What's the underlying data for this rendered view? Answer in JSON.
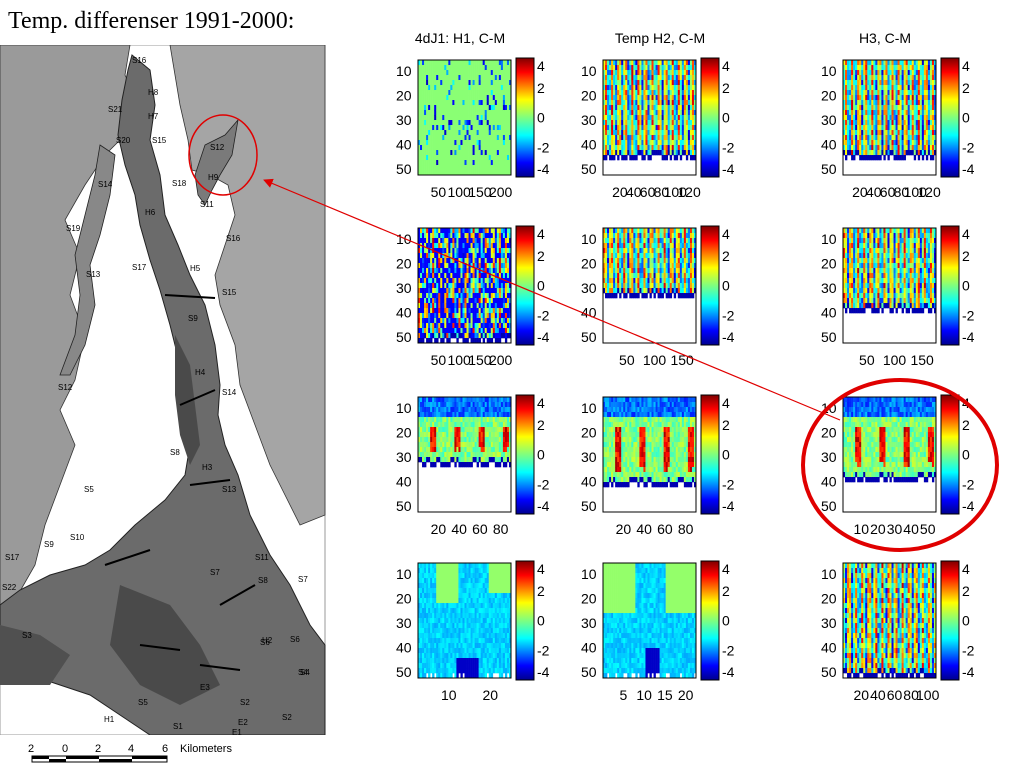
{
  "slide": {
    "title": "Temp. differenser 1991-2000:"
  },
  "map": {
    "station_labels": [
      "S16",
      "H8",
      "S21",
      "H7",
      "S15",
      "S20",
      "S14",
      "H6",
      "S18",
      "H9",
      "S12",
      "S11",
      "S16",
      "S19",
      "S17",
      "S13",
      "H5",
      "S15",
      "S9",
      "S12",
      "H4",
      "S14",
      "S8",
      "H3",
      "S13",
      "S5",
      "S10",
      "S11",
      "S7",
      "S9",
      "S17",
      "S7",
      "S8",
      "S6",
      "S4",
      "S22",
      "S3",
      "H1",
      "S2",
      "H2",
      "S6",
      "S4",
      "S5",
      "S1",
      "S2",
      "E1",
      "E3",
      "E2"
    ],
    "scale": {
      "ticks": [
        "2",
        "0",
        "2",
        "4",
        "6"
      ],
      "unit": "Kilometers"
    }
  },
  "colorbar": {
    "ticks": [
      "4",
      "2",
      "0",
      "-2",
      "-4"
    ],
    "range": [
      -4,
      4
    ]
  },
  "chart_data": {
    "type": "heatmap",
    "column_titles": [
      "4dJ1: H1, C-M",
      "Temp H2, C-M",
      "H3, C-M"
    ],
    "y_ticks": [
      "10",
      "20",
      "30",
      "40",
      "50"
    ],
    "x_ticks_by_panel": [
      [
        "50",
        "100",
        "150",
        "200"
      ],
      [
        "20",
        "40",
        "60",
        "80",
        "100",
        "120"
      ],
      [
        "20",
        "40",
        "60",
        "80",
        "100",
        "120"
      ],
      [
        "50",
        "100",
        "150",
        "200"
      ],
      [
        "50",
        "100",
        "150"
      ],
      [
        "50",
        "100",
        "150"
      ],
      [
        "20",
        "40",
        "60",
        "80"
      ],
      [
        "20",
        "40",
        "60",
        "80"
      ],
      [
        "10",
        "20",
        "30",
        "40",
        "50"
      ],
      [
        "10",
        "20"
      ],
      [
        "5",
        "10",
        "15",
        "20"
      ],
      [
        "20",
        "40",
        "60",
        "80",
        "100"
      ]
    ],
    "colorbar_range": [
      -4,
      4
    ],
    "colorbar_ticks": [
      4,
      2,
      0,
      -2,
      -4
    ]
  }
}
